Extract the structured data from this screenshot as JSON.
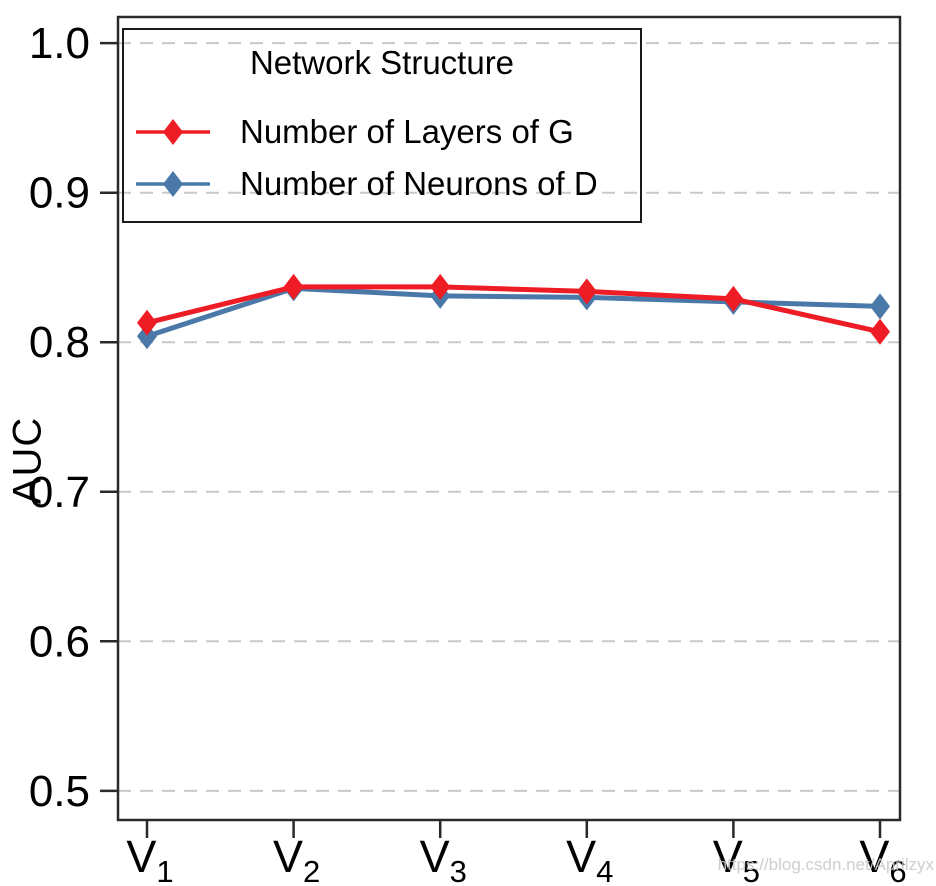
{
  "watermark": "https://blog.csdn.net/Aprilzyx",
  "colors": {
    "grid": "#c9c9c9",
    "frame": "#2a2a2a",
    "tick": "#2a2a2a",
    "text": "#000000",
    "watermark": "#c9c9c9"
  },
  "chart_data": {
    "type": "line",
    "title": "",
    "xlabel": "",
    "ylabel": "AUC",
    "categories": [
      "V1",
      "V2",
      "V3",
      "V4",
      "V5",
      "V6"
    ],
    "yticks": [
      0.5,
      0.6,
      0.7,
      0.8,
      0.9,
      1.0
    ],
    "ytick_labels": [
      "0.5",
      "0.6",
      "0.7",
      "0.8",
      "0.9",
      "1.0"
    ],
    "ylim": [
      0.4805,
      1.0175
    ],
    "grid": "horizontal-dashed",
    "legend": {
      "title": "Network Structure",
      "position": "top-left"
    },
    "series": [
      {
        "name": "Number of Layers of G",
        "color": "#ee1c25",
        "marker": "diamond",
        "values": [
          0.813,
          0.837,
          0.837,
          0.834,
          0.829,
          0.807
        ]
      },
      {
        "name": "Number of Neurons of D",
        "color": "#4a78a8",
        "marker": "diamond",
        "values": [
          0.804,
          0.836,
          0.831,
          0.83,
          0.827,
          0.824
        ]
      }
    ]
  }
}
